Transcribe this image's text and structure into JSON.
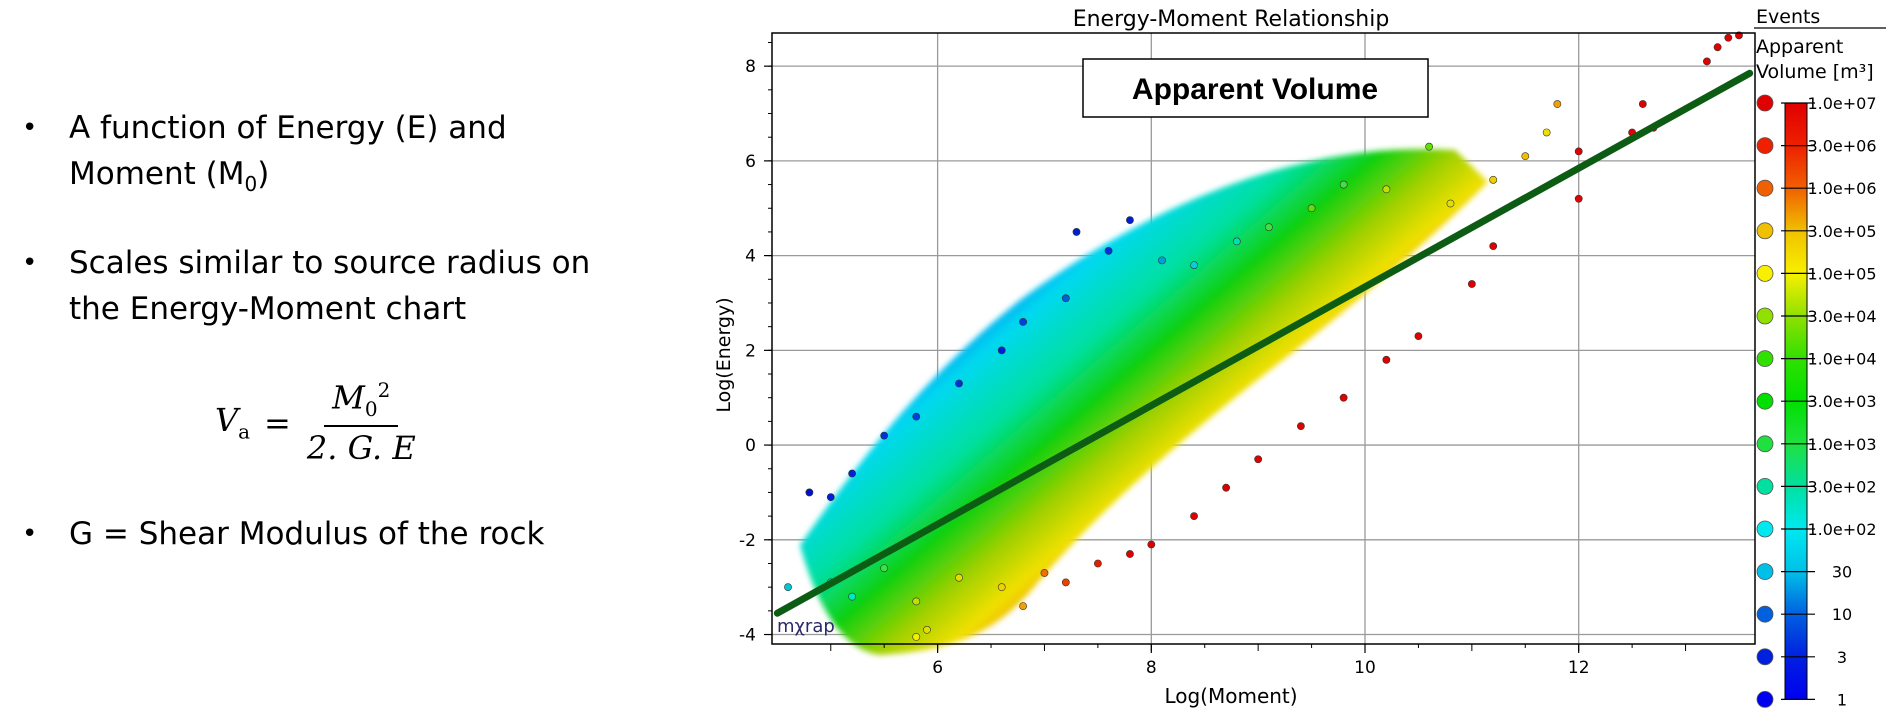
{
  "slide": {
    "bullets": [
      {
        "line1": "A function of Energy (E) and",
        "line2_prefix": "Moment (M",
        "line2_sub": "0",
        "line2_suffix": ")"
      },
      {
        "line1": "Scales similar to source radius on",
        "line2": "the Energy-Moment chart"
      },
      {
        "line1": "G = Shear Modulus of the rock"
      }
    ],
    "formula": {
      "lhs": "V",
      "lhs_sub": "a",
      "eq": "=",
      "numerator": "M",
      "numerator_sub": "0",
      "numerator_sup": "2",
      "denominator": "2. G. E"
    }
  },
  "chart_data": {
    "type": "scatter",
    "title": "Energy-Moment Relationship",
    "annotation": "Apparent Volume",
    "watermark": "mχrap",
    "xlabel": "Log(Moment)",
    "ylabel": "Log(Energy)",
    "xlim": [
      4.45,
      13.65
    ],
    "ylim": [
      -4.2,
      8.7
    ],
    "xticks": [
      "6",
      "8",
      "10",
      "12"
    ],
    "yticks": [
      "-4",
      "-2",
      "0",
      "2",
      "4",
      "6",
      "8"
    ],
    "grid": true,
    "fit_line": {
      "x": [
        4.5,
        13.6
      ],
      "y": [
        -3.55,
        7.85
      ],
      "color": "#0d5c14"
    },
    "points": [
      {
        "x": 5.0,
        "y": -2.9,
        "c": "#00e6ff"
      },
      {
        "x": 4.6,
        "y": -3.0,
        "c": "#00c8d0"
      },
      {
        "x": 5.2,
        "y": -3.2,
        "c": "#00e6c0"
      },
      {
        "x": 5.5,
        "y": -2.6,
        "c": "#40e040"
      },
      {
        "x": 5.8,
        "y": -3.3,
        "c": "#c0e000"
      },
      {
        "x": 5.9,
        "y": -3.9,
        "c": "#e0e000"
      },
      {
        "x": 5.8,
        "y": -4.05,
        "c": "#f0f000"
      },
      {
        "x": 6.2,
        "y": -2.8,
        "c": "#e0e000"
      },
      {
        "x": 6.6,
        "y": -3.0,
        "c": "#f0d000"
      },
      {
        "x": 6.8,
        "y": -3.4,
        "c": "#f0a000"
      },
      {
        "x": 7.0,
        "y": -2.7,
        "c": "#f07000"
      },
      {
        "x": 7.2,
        "y": -2.9,
        "c": "#f04000"
      },
      {
        "x": 7.5,
        "y": -2.5,
        "c": "#e02000"
      },
      {
        "x": 7.8,
        "y": -2.3,
        "c": "#e00000"
      },
      {
        "x": 8.0,
        "y": -2.1,
        "c": "#e00000"
      },
      {
        "x": 8.4,
        "y": -1.5,
        "c": "#e00000"
      },
      {
        "x": 8.7,
        "y": -0.9,
        "c": "#e00000"
      },
      {
        "x": 9.0,
        "y": -0.3,
        "c": "#e00000"
      },
      {
        "x": 9.4,
        "y": 0.4,
        "c": "#e00000"
      },
      {
        "x": 9.8,
        "y": 1.0,
        "c": "#e00000"
      },
      {
        "x": 10.2,
        "y": 1.8,
        "c": "#e00000"
      },
      {
        "x": 10.5,
        "y": 2.3,
        "c": "#e00000"
      },
      {
        "x": 11.0,
        "y": 3.4,
        "c": "#e00000"
      },
      {
        "x": 11.2,
        "y": 4.2,
        "c": "#e00000"
      },
      {
        "x": 5.0,
        "y": -1.1,
        "c": "#0020e0"
      },
      {
        "x": 4.8,
        "y": -1.0,
        "c": "#0010d0"
      },
      {
        "x": 5.2,
        "y": -0.6,
        "c": "#0020e0"
      },
      {
        "x": 5.5,
        "y": 0.2,
        "c": "#0030e0"
      },
      {
        "x": 5.8,
        "y": 0.6,
        "c": "#0040e0"
      },
      {
        "x": 6.2,
        "y": 1.3,
        "c": "#0030e0"
      },
      {
        "x": 6.6,
        "y": 2.0,
        "c": "#0020e0"
      },
      {
        "x": 6.8,
        "y": 2.6,
        "c": "#0040e0"
      },
      {
        "x": 7.2,
        "y": 3.1,
        "c": "#0060e0"
      },
      {
        "x": 7.3,
        "y": 4.5,
        "c": "#0020d0"
      },
      {
        "x": 7.6,
        "y": 4.1,
        "c": "#0030e0"
      },
      {
        "x": 7.8,
        "y": 4.75,
        "c": "#0020d0"
      },
      {
        "x": 8.1,
        "y": 3.9,
        "c": "#00a0e0"
      },
      {
        "x": 8.4,
        "y": 3.8,
        "c": "#00d0e0"
      },
      {
        "x": 8.8,
        "y": 4.3,
        "c": "#00e0b0"
      },
      {
        "x": 9.1,
        "y": 4.6,
        "c": "#40e040"
      },
      {
        "x": 9.5,
        "y": 5.0,
        "c": "#60e000"
      },
      {
        "x": 9.8,
        "y": 5.5,
        "c": "#40e040"
      },
      {
        "x": 10.2,
        "y": 5.4,
        "c": "#c0e000"
      },
      {
        "x": 10.6,
        "y": 6.3,
        "c": "#60e000"
      },
      {
        "x": 10.8,
        "y": 5.1,
        "c": "#e0e000"
      },
      {
        "x": 11.2,
        "y": 5.6,
        "c": "#f0d000"
      },
      {
        "x": 11.5,
        "y": 6.1,
        "c": "#f0c000"
      },
      {
        "x": 11.7,
        "y": 6.6,
        "c": "#f0e000"
      },
      {
        "x": 11.8,
        "y": 7.2,
        "c": "#f0a000"
      },
      {
        "x": 12.0,
        "y": 6.2,
        "c": "#e00000"
      },
      {
        "x": 12.5,
        "y": 6.6,
        "c": "#e00000"
      },
      {
        "x": 12.6,
        "y": 7.2,
        "c": "#e00000"
      },
      {
        "x": 13.2,
        "y": 8.1,
        "c": "#e00000"
      },
      {
        "x": 13.3,
        "y": 8.4,
        "c": "#e00000"
      },
      {
        "x": 13.4,
        "y": 8.6,
        "c": "#e00000"
      },
      {
        "x": 13.5,
        "y": 8.65,
        "c": "#e00000"
      },
      {
        "x": 12.0,
        "y": 5.2,
        "c": "#e00000"
      },
      {
        "x": 12.7,
        "y": 6.7,
        "c": "#e00000"
      }
    ]
  },
  "legend": {
    "title": "Events",
    "subtitle_line1": "Apparent",
    "subtitle_line2": "Volume [m³]",
    "items": [
      {
        "label": "1.0e+07",
        "color": "#e00000"
      },
      {
        "label": "3.0e+06",
        "color": "#ee2000"
      },
      {
        "label": "1.0e+06",
        "color": "#f06000"
      },
      {
        "label": "3.0e+05",
        "color": "#f0c000"
      },
      {
        "label": "1.0e+05",
        "color": "#f8f000"
      },
      {
        "label": "3.0e+04",
        "color": "#90e000"
      },
      {
        "label": "1.0e+04",
        "color": "#30e000"
      },
      {
        "label": "3.0e+03",
        "color": "#00e000"
      },
      {
        "label": "1.0e+03",
        "color": "#20e040"
      },
      {
        "label": "3.0e+02",
        "color": "#00e0a0"
      },
      {
        "label": "1.0e+02",
        "color": "#00e8f0"
      },
      {
        "label": "30",
        "color": "#00c0e8"
      },
      {
        "label": "10",
        "color": "#0060e0"
      },
      {
        "label": "3",
        "color": "#0020e0"
      },
      {
        "label": "1",
        "color": "#0000f0"
      }
    ]
  }
}
